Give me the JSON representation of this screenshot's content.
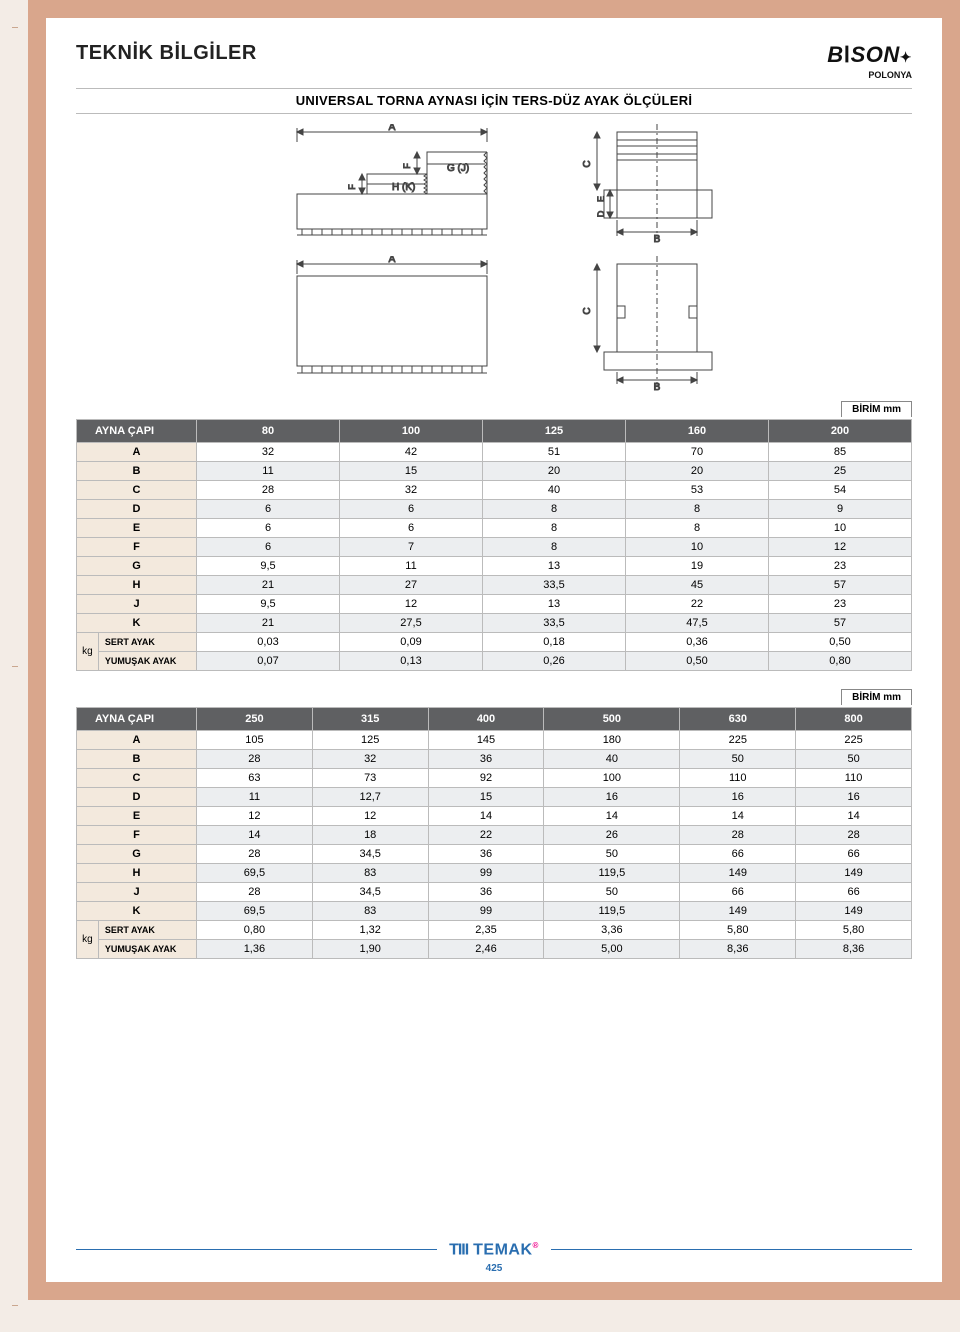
{
  "page_title": "TEKNİK BİLGİLER",
  "logo": {
    "name": "BISON",
    "sub": "POLONYA"
  },
  "subtitle": "UNIVERSAL TORNA AYNASI İÇİN TERS-DÜZ AYAK ÖLÇÜLERİ",
  "unit_label": "BİRİM mm",
  "diagram_labels": {
    "A": "A",
    "B": "B",
    "C": "C",
    "D": "D",
    "E": "E",
    "F": "F",
    "GJ": "G (J)",
    "HK": "H (K)"
  },
  "table1": {
    "header_label": "AYNA ÇAPI",
    "cols": [
      "80",
      "100",
      "125",
      "160",
      "200"
    ],
    "rows": [
      {
        "label": "A",
        "vals": [
          "32",
          "42",
          "51",
          "70",
          "85"
        ]
      },
      {
        "label": "B",
        "vals": [
          "11",
          "15",
          "20",
          "20",
          "25"
        ]
      },
      {
        "label": "C",
        "vals": [
          "28",
          "32",
          "40",
          "53",
          "54"
        ]
      },
      {
        "label": "D",
        "vals": [
          "6",
          "6",
          "8",
          "8",
          "9"
        ]
      },
      {
        "label": "E",
        "vals": [
          "6",
          "6",
          "8",
          "8",
          "10"
        ]
      },
      {
        "label": "F",
        "vals": [
          "6",
          "7",
          "8",
          "10",
          "12"
        ]
      },
      {
        "label": "G",
        "vals": [
          "9,5",
          "11",
          "13",
          "19",
          "23"
        ]
      },
      {
        "label": "H",
        "vals": [
          "21",
          "27",
          "33,5",
          "45",
          "57"
        ]
      },
      {
        "label": "J",
        "vals": [
          "9,5",
          "12",
          "13",
          "22",
          "23"
        ]
      },
      {
        "label": "K",
        "vals": [
          "21",
          "27,5",
          "33,5",
          "47,5",
          "57"
        ]
      }
    ],
    "kg_label": "kg",
    "kg_rows": [
      {
        "label": "SERT AYAK",
        "vals": [
          "0,03",
          "0,09",
          "0,18",
          "0,36",
          "0,50"
        ]
      },
      {
        "label": "YUMUŞAK AYAK",
        "vals": [
          "0,07",
          "0,13",
          "0,26",
          "0,50",
          "0,80"
        ]
      }
    ]
  },
  "table2": {
    "header_label": "AYNA ÇAPI",
    "cols": [
      "250",
      "315",
      "400",
      "500",
      "630",
      "800"
    ],
    "rows": [
      {
        "label": "A",
        "vals": [
          "105",
          "125",
          "145",
          "180",
          "225",
          "225"
        ]
      },
      {
        "label": "B",
        "vals": [
          "28",
          "32",
          "36",
          "40",
          "50",
          "50"
        ]
      },
      {
        "label": "C",
        "vals": [
          "63",
          "73",
          "92",
          "100",
          "110",
          "110"
        ]
      },
      {
        "label": "D",
        "vals": [
          "11",
          "12,7",
          "15",
          "16",
          "16",
          "16"
        ]
      },
      {
        "label": "E",
        "vals": [
          "12",
          "12",
          "14",
          "14",
          "14",
          "14"
        ]
      },
      {
        "label": "F",
        "vals": [
          "14",
          "18",
          "22",
          "26",
          "28",
          "28"
        ]
      },
      {
        "label": "G",
        "vals": [
          "28",
          "34,5",
          "36",
          "50",
          "66",
          "66"
        ]
      },
      {
        "label": "H",
        "vals": [
          "69,5",
          "83",
          "99",
          "119,5",
          "149",
          "149"
        ]
      },
      {
        "label": "J",
        "vals": [
          "28",
          "34,5",
          "36",
          "50",
          "66",
          "66"
        ]
      },
      {
        "label": "K",
        "vals": [
          "69,5",
          "83",
          "99",
          "119,5",
          "149",
          "149"
        ]
      }
    ],
    "kg_label": "kg",
    "kg_rows": [
      {
        "label": "SERT AYAK",
        "vals": [
          "0,80",
          "1,32",
          "2,35",
          "3,36",
          "5,80",
          "5,80"
        ]
      },
      {
        "label": "YUMUŞAK AYAK",
        "vals": [
          "1,36",
          "1,90",
          "2,46",
          "5,00",
          "8,36",
          "8,36"
        ]
      }
    ]
  },
  "footer": {
    "logo": "TEMAK",
    "page": "425"
  },
  "colors": {
    "outer_bg": "#d9a68c",
    "header_bg": "#5f6062",
    "row_shade": "#eceef0",
    "label_bg": "#f3e9dd",
    "accent": "#2a6eb0",
    "stroke": "#444"
  }
}
